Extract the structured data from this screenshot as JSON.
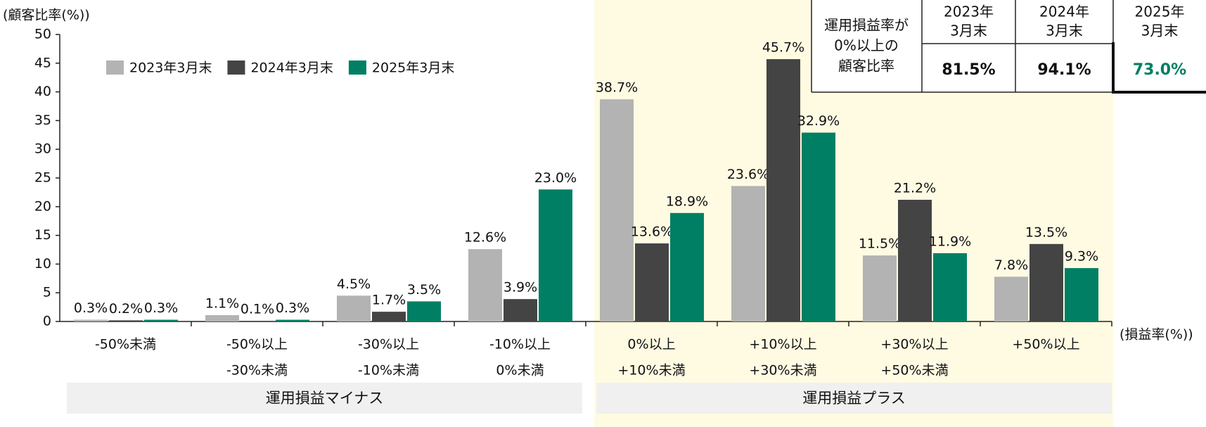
{
  "chart_data": {
    "type": "bar",
    "y_label": "(顧客比率(%))",
    "x_label": "(損益率(%))",
    "categories": [
      [
        "-50%未満"
      ],
      [
        "-50%以上",
        "-30%未満"
      ],
      [
        "-30%以上",
        "-10%未満"
      ],
      [
        "-10%以上",
        "0%未満"
      ],
      [
        "0%以上",
        "+10%未満"
      ],
      [
        "+10%以上",
        "+30%未満"
      ],
      [
        "+30%以上",
        "+50%未満"
      ],
      [
        "+50%以上"
      ]
    ],
    "groups": [
      "運用損益マイナス",
      "運用損益プラス"
    ],
    "series": [
      {
        "name": "2023年3月末",
        "color": "#b3b3b3",
        "values": [
          0.3,
          1.1,
          4.5,
          12.6,
          38.7,
          23.6,
          11.5,
          7.8
        ],
        "value_labels": [
          "0.3%",
          "1.1%",
          "4.5%",
          "12.6%",
          "38.7%",
          "23.6%",
          "11.5%",
          "7.8%"
        ]
      },
      {
        "name": "2024年3月末",
        "color": "#444444",
        "values": [
          0.2,
          0.1,
          1.7,
          3.9,
          13.6,
          45.7,
          21.2,
          13.5
        ],
        "value_labels": [
          "0.2%",
          "0.1%",
          "1.7%",
          "3.9%",
          "13.6%",
          "45.7%",
          "21.2%",
          "13.5%"
        ]
      },
      {
        "name": "2025年3月末",
        "color": "#007f64",
        "values": [
          0.3,
          0.3,
          3.5,
          23.0,
          18.9,
          32.9,
          11.9,
          9.3
        ],
        "value_labels": [
          "0.3%",
          "0.3%",
          "3.5%",
          "23.0%",
          "18.9%",
          "32.9%",
          "11.9%",
          "9.3%"
        ]
      }
    ],
    "ylim": [
      0,
      50
    ],
    "yticks": [
      0,
      5,
      10,
      15,
      20,
      25,
      30,
      35,
      40,
      45,
      50
    ],
    "legend": "top-left",
    "table": {
      "row_header": [
        "運用損益率が",
        "0%以上の",
        "顧客比率"
      ],
      "columns": [
        [
          "2023年",
          "3月末"
        ],
        [
          "2024年",
          "3月末"
        ],
        [
          "2025年",
          "3月末"
        ]
      ],
      "values": [
        "81.5%",
        "94.1%",
        "73.0%"
      ]
    }
  }
}
